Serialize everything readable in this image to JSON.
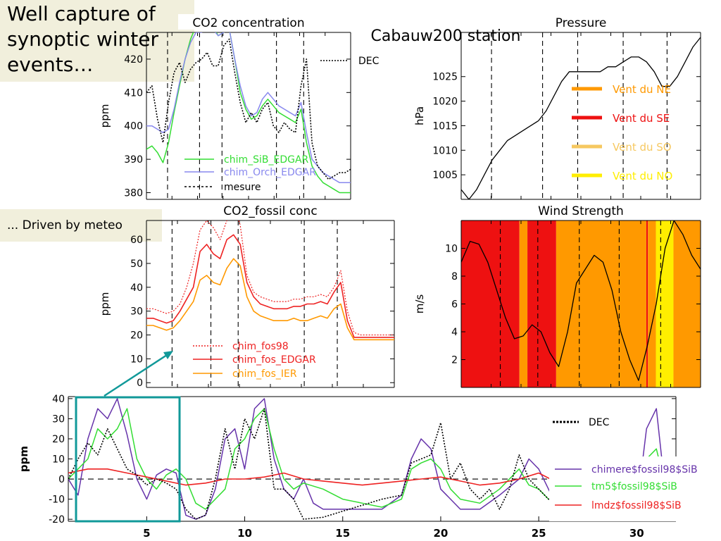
{
  "callouts": {
    "main": "Well capture of synoptic winter events…",
    "meteo": "... Driven by meteo"
  },
  "station_label": "Cabauw200 station",
  "colors": {
    "green": "#33dd33",
    "purple": "#8888ee",
    "red": "#ee2222",
    "orange": "#ff9900",
    "dark_red": "#ee1111",
    "light_orange": "#f6c860",
    "yellow": "#ffee00",
    "teal": "#119999",
    "bottom_purple": "#6633aa"
  },
  "chart_data": [
    {
      "id": "co2",
      "type": "line",
      "title": "CO2 concentration",
      "ylabel": "ppm",
      "ylim": [
        378,
        428
      ],
      "yticks": [
        380,
        390,
        400,
        410,
        420
      ],
      "x_range": [
        0,
        30
      ],
      "dashed_x": [
        3.1,
        7.8,
        11.1,
        19.1,
        23.1
      ],
      "tag": "DEC",
      "series": [
        {
          "name": "chim_SiB_EDGAR",
          "style": "green",
          "y": [
            393,
            394,
            392,
            389,
            395,
            404,
            412,
            420,
            426,
            430,
            430,
            431,
            430,
            427,
            428,
            429,
            420,
            410,
            405,
            402,
            403,
            406,
            408,
            406,
            404,
            403,
            402,
            401,
            405,
            395,
            388,
            385,
            383,
            382,
            381,
            380,
            380,
            380
          ]
        },
        {
          "name": "chim_Orch_EDGAR",
          "style": "purple",
          "y": [
            400,
            400,
            399,
            398,
            399,
            405,
            413,
            420,
            425,
            428,
            428,
            430,
            429,
            427,
            428,
            429,
            420,
            412,
            406,
            403,
            404,
            408,
            410,
            408,
            406,
            405,
            404,
            403,
            407,
            398,
            390,
            388,
            386,
            385,
            384,
            383,
            383,
            383
          ]
        },
        {
          "name": "mesure",
          "style": "dotted",
          "y": [
            410,
            412,
            402,
            395,
            407,
            416,
            419,
            413,
            417,
            419,
            420,
            422,
            418,
            418,
            424,
            426,
            416,
            407,
            401,
            404,
            401,
            405,
            407,
            400,
            398,
            401,
            399,
            398,
            412,
            420,
            395,
            388,
            386,
            384,
            385,
            386,
            386,
            387
          ]
        }
      ]
    },
    {
      "id": "pressure",
      "type": "line",
      "title": "Pressure",
      "ylabel": "hPa",
      "ylim": [
        1000,
        1034
      ],
      "yticks": [
        1005,
        1010,
        1015,
        1020,
        1025
      ],
      "x_range": [
        0,
        30
      ],
      "dashed_x": [
        3.8,
        10.2,
        14.6,
        20.3,
        25.8
      ],
      "series": [
        {
          "name": "pressure",
          "style": "black",
          "y": [
            1002,
            1000,
            1002,
            1005,
            1008,
            1010,
            1012,
            1013,
            1014,
            1015,
            1016,
            1018,
            1021,
            1024,
            1026,
            1026,
            1026,
            1026,
            1026,
            1027,
            1027,
            1028,
            1029,
            1029,
            1028,
            1026,
            1023,
            1023,
            1025,
            1028,
            1031,
            1033
          ]
        }
      ],
      "legend": [
        {
          "label": "Vent du NE",
          "color": "#ff9900"
        },
        {
          "label": "Vent du SE",
          "color": "#ee1111"
        },
        {
          "label": "Vent du SO",
          "color": "#f6c860"
        },
        {
          "label": "Vent du NO",
          "color": "#ffee00"
        }
      ]
    },
    {
      "id": "fossil",
      "type": "line",
      "title": "CO2_fossil conc",
      "ylabel": "ppm",
      "ylim": [
        -2,
        68
      ],
      "yticks": [
        0,
        10,
        20,
        30,
        40,
        50,
        60
      ],
      "x_range": [
        0,
        30
      ],
      "dashed_x": [
        3.1,
        7.8,
        11.1,
        19.1,
        23.1
      ],
      "series": [
        {
          "name": "chim_fos98",
          "style": "reddotted",
          "y": [
            31,
            31,
            30,
            29,
            30,
            33,
            40,
            50,
            64,
            68,
            65,
            60,
            68,
            75,
            66,
            45,
            38,
            36,
            35,
            34,
            34,
            34,
            35,
            35,
            36,
            36,
            37,
            36,
            40,
            47,
            30,
            21,
            20,
            20,
            20,
            20,
            20,
            20
          ]
        },
        {
          "name": "chim_fos_EDGAR",
          "style": "red",
          "y": [
            27,
            27,
            26,
            25,
            26,
            30,
            35,
            40,
            55,
            58,
            54,
            52,
            60,
            62,
            58,
            42,
            36,
            33,
            32,
            31,
            31,
            31,
            32,
            32,
            33,
            33,
            34,
            33,
            38,
            42,
            26,
            19,
            19,
            19,
            19,
            19,
            19,
            19
          ]
        },
        {
          "name": "chim_fos_IER",
          "style": "orange",
          "y": [
            24,
            24,
            23,
            22,
            23,
            26,
            30,
            34,
            43,
            45,
            42,
            41,
            48,
            52,
            49,
            36,
            30,
            28,
            27,
            26,
            26,
            26,
            27,
            26,
            26,
            27,
            28,
            27,
            31,
            33,
            23,
            18,
            18,
            18,
            18,
            18,
            18,
            18
          ]
        }
      ]
    },
    {
      "id": "wind",
      "type": "line",
      "title": "Wind Strength",
      "ylabel": "m/s",
      "ylim": [
        0,
        12
      ],
      "yticks": [
        2,
        4,
        6,
        8,
        10
      ],
      "x_range": [
        0,
        30
      ],
      "dashed_x": [
        4.9,
        9.6,
        14.8,
        19.8,
        25.0
      ],
      "wind_bands": [
        {
          "from": 0,
          "to": 7.3,
          "dir": "SE"
        },
        {
          "from": 7.3,
          "to": 8.3,
          "dir": "NE"
        },
        {
          "from": 8.3,
          "to": 11.9,
          "dir": "SE"
        },
        {
          "from": 11.9,
          "to": 23.2,
          "dir": "NE"
        },
        {
          "from": 23.2,
          "to": 23.4,
          "dir": "SE"
        },
        {
          "from": 23.4,
          "to": 24.4,
          "dir": "NE"
        },
        {
          "from": 24.4,
          "to": 26.6,
          "dir": "NO"
        },
        {
          "from": 26.6,
          "to": 30,
          "dir": "NE"
        }
      ],
      "series": [
        {
          "name": "wind",
          "style": "black",
          "y": [
            9,
            10.5,
            10.3,
            9,
            7,
            5,
            3.5,
            3.7,
            4.5,
            4,
            2.5,
            1.5,
            4,
            7.5,
            8.5,
            9.5,
            9,
            7,
            4,
            2,
            0.5,
            3,
            6,
            10,
            12,
            11,
            9.5,
            8.5
          ]
        }
      ]
    },
    {
      "id": "bottom",
      "type": "line",
      "ylabel": "ppm",
      "ylim": [
        -21,
        41
      ],
      "yticks": [
        -20,
        -10,
        0,
        10,
        20,
        30,
        40
      ],
      "xlim": [
        1,
        32
      ],
      "xticks": [
        5,
        10,
        15,
        20,
        25,
        30
      ],
      "tag": "DEC",
      "series": [
        {
          "name": "chimere$fossil98$SiB",
          "style": "purple",
          "x": [
            1,
            1.5,
            2,
            2.5,
            3,
            3.5,
            4,
            4.5,
            5,
            5.5,
            6,
            6.5,
            7,
            7.5,
            8,
            8.5,
            9,
            9.5,
            10,
            10.5,
            11,
            11.5,
            12,
            12.5,
            13,
            13.5,
            14,
            15,
            16,
            17,
            18,
            18.5,
            19,
            19.5,
            20,
            20.5,
            21,
            22,
            23,
            24,
            24.5,
            25,
            25.5,
            26,
            27,
            28,
            29,
            30,
            30.5,
            31,
            31.5,
            32
          ],
          "y": [
            0,
            -8,
            20,
            35,
            30,
            40,
            22,
            0,
            -10,
            2,
            5,
            3,
            -18,
            -20,
            -18,
            -5,
            20,
            25,
            5,
            35,
            40,
            10,
            -5,
            -10,
            0,
            -12,
            -15,
            -15,
            -15,
            -15,
            -8,
            10,
            20,
            15,
            -5,
            -10,
            -15,
            -15,
            -8,
            0,
            10,
            5,
            -5,
            -15,
            -15,
            -15,
            -15,
            -15,
            25,
            35,
            -10,
            -15
          ]
        },
        {
          "name": "tm5$fossil98$SiB",
          "style": "green",
          "x": [
            1,
            2,
            2.5,
            3,
            3.5,
            4,
            4.5,
            5,
            5.5,
            6,
            6.5,
            7,
            7.5,
            8,
            9,
            9.5,
            10,
            10.5,
            11,
            11.5,
            12,
            12.5,
            13,
            14,
            15,
            16,
            17,
            18,
            18.5,
            19,
            19.5,
            20,
            20.5,
            21,
            22,
            23,
            24,
            24.5,
            25,
            25.5,
            26,
            27,
            28,
            29,
            30,
            30.5,
            31,
            31.5,
            32
          ],
          "y": [
            0,
            10,
            25,
            20,
            25,
            35,
            10,
            0,
            -5,
            2,
            5,
            0,
            -12,
            -15,
            -5,
            15,
            20,
            30,
            35,
            15,
            0,
            -5,
            -2,
            -5,
            -10,
            -12,
            -14,
            -10,
            5,
            8,
            10,
            5,
            -5,
            -10,
            -12,
            -5,
            5,
            -3,
            -5,
            -10,
            -12,
            -12,
            -12,
            -12,
            -12,
            10,
            15,
            -5,
            -12
          ]
        },
        {
          "name": "lmdz$fossil98$SiB",
          "style": "red",
          "x": [
            1,
            2,
            3,
            4,
            5,
            6,
            7,
            8,
            9,
            10,
            11,
            12,
            13,
            14,
            15,
            16,
            17,
            18,
            19,
            20,
            21,
            22,
            23,
            24,
            25,
            26,
            27,
            28,
            29,
            30,
            31,
            32
          ],
          "y": [
            3,
            5,
            5,
            3,
            1,
            -1,
            -3,
            -2,
            0,
            0,
            1,
            3,
            0,
            -1,
            -2,
            -3,
            -2,
            -1,
            0,
            1,
            -1,
            -3,
            -2,
            0,
            3,
            -2,
            -3,
            -3,
            -3,
            -3,
            -2,
            -2
          ]
        },
        {
          "name": "DEC",
          "style": "dotted",
          "x": [
            1,
            1.5,
            2,
            2.5,
            3,
            3.5,
            4,
            4.5,
            5,
            5.5,
            6,
            6.5,
            7,
            7.5,
            8,
            8.5,
            9,
            9.5,
            10,
            10.5,
            11,
            11.5,
            12,
            12.5,
            13,
            14,
            15,
            16,
            17,
            18,
            18.5,
            19,
            19.5,
            20,
            20.5,
            21,
            21.5,
            22,
            22.5,
            23,
            23.5,
            24,
            24.5,
            25,
            25.5,
            26
          ],
          "y": [
            0,
            10,
            18,
            12,
            25,
            15,
            5,
            2,
            -3,
            0,
            -2,
            -5,
            -15,
            -20,
            -18,
            0,
            25,
            5,
            30,
            20,
            35,
            -5,
            -5,
            -10,
            -20,
            -19,
            -16,
            -13,
            -10,
            -8,
            8,
            10,
            12,
            28,
            0,
            8,
            -5,
            -10,
            -5,
            -15,
            -5,
            12,
            0,
            -5,
            -10,
            -10
          ]
        }
      ]
    }
  ]
}
